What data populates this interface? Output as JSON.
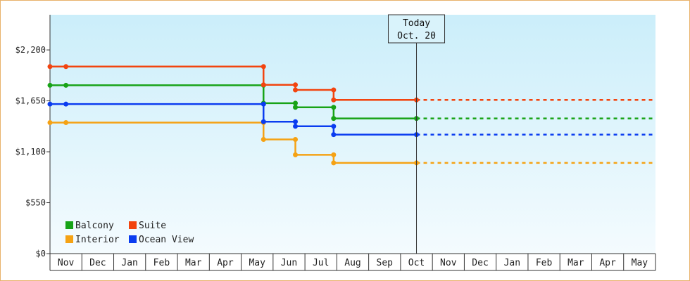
{
  "chart_data": {
    "type": "line",
    "step": true,
    "categories": [
      "Nov",
      "Dec",
      "Jan",
      "Feb",
      "Mar",
      "Apr",
      "May",
      "Jun",
      "Jul",
      "Aug",
      "Sep",
      "Oct",
      "Nov",
      "Dec",
      "Jan",
      "Feb",
      "Mar",
      "Apr",
      "May"
    ],
    "y_ticks": [
      "$0",
      "$550",
      "$1,100",
      "$1,650",
      "$2,200"
    ],
    "y_tick_values": [
      0,
      550,
      1100,
      1650,
      2200
    ],
    "ylim": [
      0,
      2580
    ],
    "grid": false,
    "legend_placement": "bottom-left",
    "today": {
      "line1": "Today",
      "line2": "Oct. 20",
      "month_index": 11
    },
    "series": [
      {
        "name": "Balcony",
        "color": "#17a317",
        "points": [
          [
            0,
            1818
          ],
          [
            6.2,
            1818
          ],
          [
            6.2,
            1625
          ],
          [
            7.2,
            1625
          ],
          [
            7.2,
            1580
          ],
          [
            8.4,
            1580
          ],
          [
            8.4,
            1460
          ],
          [
            11,
            1460
          ]
        ],
        "forecast": 1460
      },
      {
        "name": "Suite",
        "color": "#f2440f",
        "points": [
          [
            0,
            2020
          ],
          [
            6.2,
            2020
          ],
          [
            6.2,
            1823
          ],
          [
            7.2,
            1823
          ],
          [
            7.2,
            1768
          ],
          [
            8.4,
            1768
          ],
          [
            8.4,
            1660
          ],
          [
            11,
            1660
          ]
        ],
        "forecast": 1660
      },
      {
        "name": "Interior",
        "color": "#f5a214",
        "points": [
          [
            0,
            1415
          ],
          [
            6.2,
            1415
          ],
          [
            6.2,
            1233
          ],
          [
            7.2,
            1233
          ],
          [
            7.2,
            1067
          ],
          [
            8.4,
            1067
          ],
          [
            8.4,
            980
          ],
          [
            11,
            980
          ]
        ],
        "forecast": 980
      },
      {
        "name": "Ocean View",
        "color": "#0a3cf0",
        "points": [
          [
            0,
            1615
          ],
          [
            6.2,
            1615
          ],
          [
            6.2,
            1425
          ],
          [
            7.2,
            1425
          ],
          [
            7.2,
            1375
          ],
          [
            8.4,
            1375
          ],
          [
            8.4,
            1285
          ],
          [
            11,
            1285
          ]
        ],
        "forecast": 1285
      }
    ]
  }
}
